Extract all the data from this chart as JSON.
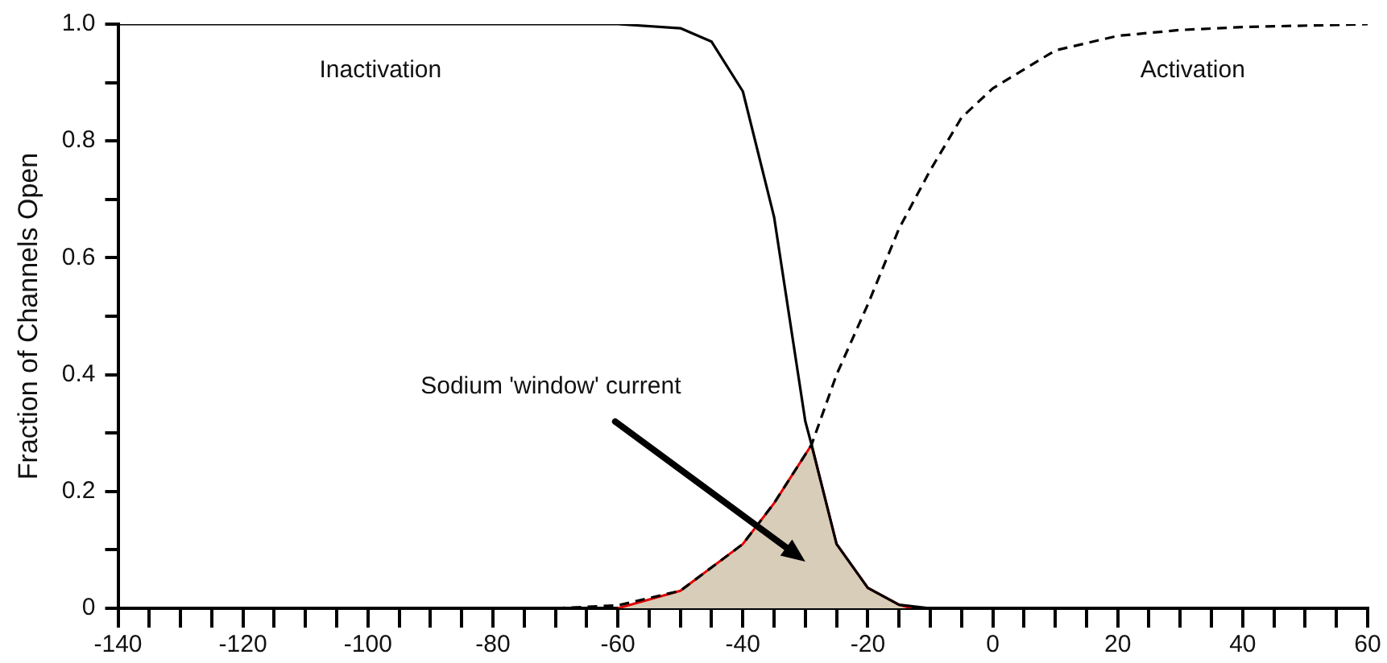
{
  "chart_data": {
    "type": "line",
    "ylabel": "Fraction of Channels Open",
    "series": [
      {
        "name": "Inactivation",
        "color": "#000000",
        "line_style": "solid",
        "x": [
          -140,
          -60,
          -50,
          -45,
          -40,
          -35,
          -30,
          -29,
          -25,
          -20,
          -15,
          -10,
          60
        ],
        "values": [
          1,
          1,
          0.993,
          0.97,
          0.885,
          0.67,
          0.32,
          0.28,
          0.11,
          0.035,
          0.006,
          0,
          0
        ]
      },
      {
        "name": "Activation",
        "color": "#000000",
        "line_style": "dashed",
        "x": [
          -70,
          -60,
          -50,
          -40,
          -35,
          -29,
          -25,
          -20,
          -15,
          -10,
          -5,
          0,
          10,
          20,
          30,
          40,
          60
        ],
        "values": [
          0,
          0.005,
          0.03,
          0.11,
          0.18,
          0.28,
          0.4,
          0.52,
          0.65,
          0.75,
          0.84,
          0.89,
          0.955,
          0.98,
          0.99,
          0.995,
          1
        ]
      },
      {
        "type": "area",
        "color": "#d8cdb8",
        "x": [
          -60,
          -50,
          -40,
          -35,
          -29,
          -25,
          -20,
          -15,
          -13
        ],
        "values": [
          0,
          0.03,
          0.11,
          0.18,
          0.28,
          0.11,
          0.035,
          0.006,
          0
        ]
      }
    ],
    "annotations": [
      "Sodium 'window' current"
    ],
    "xlim": [
      -140,
      60
    ],
    "xticks": [
      -140,
      {
        "value": -135,
        "label": null
      },
      {
        "value": -130,
        "label": null
      },
      {
        "value": -125,
        "label": null
      },
      -120,
      {
        "value": -115,
        "label": null
      },
      {
        "value": -110,
        "label": null
      },
      {
        "value": -105,
        "label": null
      },
      -100,
      {
        "value": -95,
        "label": null
      },
      {
        "value": -90,
        "label": null
      },
      {
        "value": -85,
        "label": null
      },
      -80,
      {
        "value": -75,
        "label": null
      },
      {
        "value": -70,
        "label": null
      },
      {
        "value": -65,
        "label": null
      },
      -60,
      {
        "value": -55,
        "label": null
      },
      {
        "value": -50,
        "label": null
      },
      {
        "value": -45,
        "label": null
      },
      -40,
      {
        "value": -35,
        "label": null
      },
      {
        "value": -30,
        "label": null
      },
      {
        "value": -25,
        "label": null
      },
      -20,
      {
        "value": -15,
        "label": null
      },
      {
        "value": -10,
        "label": null
      },
      {
        "value": -5,
        "label": null
      },
      0,
      {
        "value": 5,
        "label": null
      },
      {
        "value": 10,
        "label": null
      },
      {
        "value": 15,
        "label": null
      },
      20,
      {
        "value": 25,
        "label": null
      },
      {
        "value": 30,
        "label": null
      },
      {
        "value": 35,
        "label": null
      },
      40,
      {
        "value": 45,
        "label": null
      },
      {
        "value": 50,
        "label": null
      },
      {
        "value": 55,
        "label": null
      },
      60
    ],
    "ylim": [
      0,
      1
    ],
    "yticks": [
      0,
      {
        "value": 0.1,
        "label": null
      },
      {
        "value": 0.2,
        "label": "0.2"
      },
      {
        "value": 0.3,
        "label": null
      },
      {
        "value": 0.4,
        "label": "0.4"
      },
      {
        "value": 0.5,
        "label": null
      },
      {
        "value": 0.6,
        "label": "0.6"
      },
      {
        "value": 0.7,
        "label": null
      },
      {
        "value": 0.8,
        "label": "0.8"
      },
      {
        "value": 0.9,
        "label": null
      },
      {
        "value": 1,
        "label": "1.0"
      }
    ],
    "grid": false,
    "legend": false,
    "marker": "none"
  }
}
